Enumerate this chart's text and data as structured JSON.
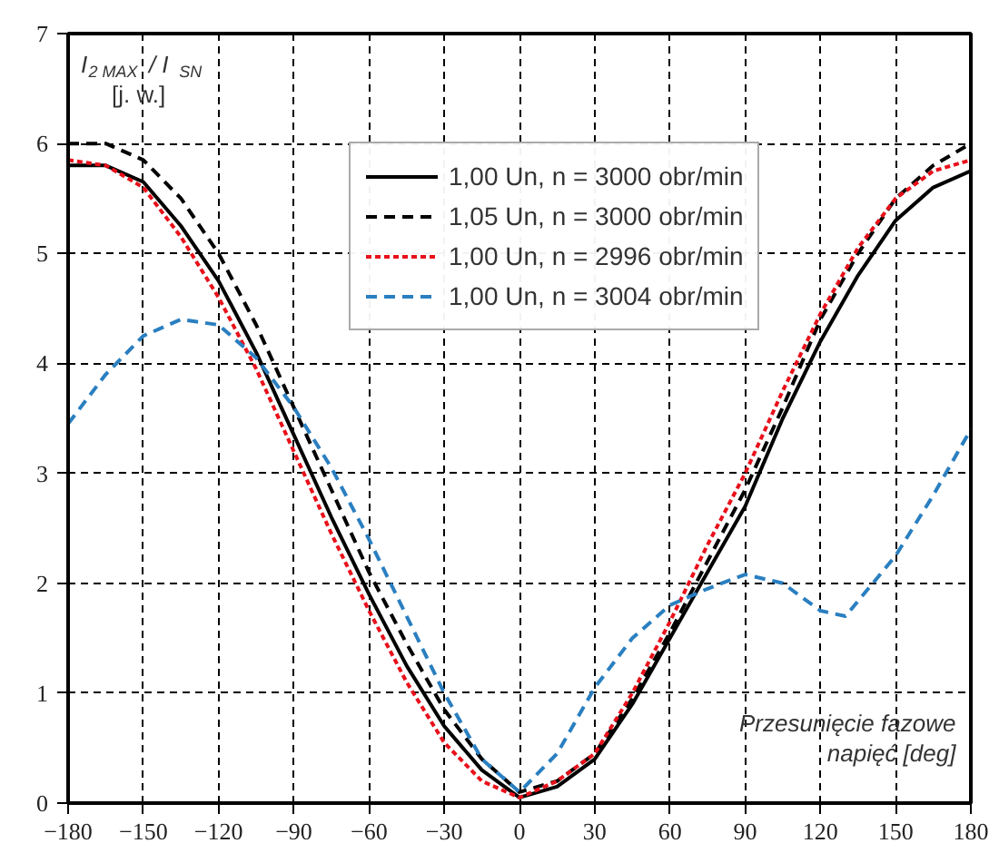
{
  "chart_data": {
    "type": "line",
    "ylabel": "I$_{2 MAX}$ / I$_{SN}$\n[j. w.]",
    "xlabel": "Przesunięcie fazowe\nnapięć [deg]",
    "x": [
      -180,
      -165,
      -150,
      -135,
      -120,
      -105,
      -90,
      -75,
      -60,
      -45,
      -30,
      -15,
      0,
      15,
      30,
      45,
      60,
      75,
      90,
      105,
      120,
      135,
      150,
      165,
      180
    ],
    "series": [
      {
        "name": "1,00 Un, n = 3000 obr/min",
        "color": "#000000",
        "line_style": "solid",
        "values": [
          5.8,
          5.8,
          5.65,
          5.25,
          4.75,
          4.1,
          3.35,
          2.6,
          1.9,
          1.25,
          0.7,
          0.3,
          0.05,
          0.15,
          0.4,
          0.9,
          1.5,
          2.1,
          2.7,
          3.5,
          4.2,
          4.8,
          5.3,
          5.6,
          5.75
        ]
      },
      {
        "name": "1,05 Un, n = 3000 obr/min",
        "color": "#000000",
        "line_style": "dashed",
        "values": [
          6.0,
          6.0,
          5.85,
          5.5,
          5.0,
          4.35,
          3.6,
          2.85,
          2.1,
          1.45,
          0.85,
          0.4,
          0.1,
          0.2,
          0.45,
          0.95,
          1.55,
          2.2,
          2.85,
          3.6,
          4.4,
          5.0,
          5.5,
          5.8,
          6.0
        ]
      },
      {
        "name": "1,00 Un, n = 2996 obr/min",
        "color": "#e8101a",
        "line_style": "dotted",
        "values": [
          5.85,
          5.8,
          5.6,
          5.15,
          4.6,
          3.95,
          3.2,
          2.45,
          1.75,
          1.1,
          0.55,
          0.2,
          0.05,
          0.2,
          0.45,
          1.0,
          1.65,
          2.35,
          3.0,
          3.75,
          4.45,
          5.05,
          5.5,
          5.75,
          5.85
        ]
      },
      {
        "name": "1,00 Un, n = 3004 obr/min",
        "color": "#2a7fc0",
        "line_style": "dashed",
        "x": [
          -180,
          -165,
          -150,
          -135,
          -120,
          -105,
          -90,
          -75,
          -60,
          -45,
          -30,
          -15,
          0,
          15,
          30,
          45,
          60,
          75,
          90,
          105,
          120,
          130,
          150,
          165,
          180
        ],
        "values": [
          3.45,
          3.9,
          4.25,
          4.4,
          4.35,
          4.05,
          3.6,
          3.05,
          2.4,
          1.7,
          1.0,
          0.4,
          0.1,
          0.45,
          1.05,
          1.5,
          1.8,
          1.95,
          2.08,
          2.0,
          1.75,
          1.7,
          2.25,
          2.8,
          3.4
        ]
      }
    ],
    "xlim": [
      -180,
      180
    ],
    "ylim": [
      0,
      7
    ],
    "xticks": [
      -180,
      -150,
      -120,
      -90,
      -60,
      -30,
      0,
      30,
      60,
      90,
      120,
      150,
      180
    ],
    "yticks": [
      0,
      1,
      2,
      3,
      4,
      5,
      6,
      7
    ],
    "grid": true,
    "legend": "top right",
    "marker": "none"
  }
}
